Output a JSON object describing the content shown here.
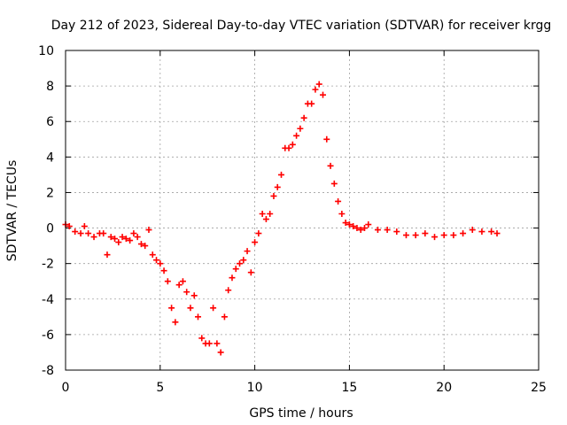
{
  "chart_data": {
    "type": "scatter",
    "title": "Day 212 of 2023, Sidereal Day-to-day VTEC variation (SDTVAR) for receiver krgg",
    "xlabel": "GPS time / hours",
    "ylabel": "SDTVAR / TECUs",
    "xlim": [
      0,
      25
    ],
    "ylim": [
      -8,
      10
    ],
    "xticks": [
      "0",
      "5",
      "10",
      "15",
      "20",
      "25"
    ],
    "yticks": [
      "-8",
      "-6",
      "-4",
      "-2",
      "0",
      "2",
      "4",
      "6",
      "8",
      "10"
    ],
    "grid": true,
    "marker": "+",
    "series": [
      {
        "name": "krgg",
        "color": "#ff0000",
        "x": [
          0.0,
          0.2,
          0.5,
          0.8,
          1.0,
          1.2,
          1.5,
          1.8,
          2.0,
          2.2,
          2.4,
          2.6,
          2.8,
          3.0,
          3.2,
          3.4,
          3.6,
          3.8,
          4.0,
          4.2,
          4.4,
          4.6,
          4.8,
          5.0,
          5.2,
          5.4,
          5.6,
          5.8,
          6.0,
          6.2,
          6.4,
          6.6,
          6.8,
          7.0,
          7.2,
          7.4,
          7.6,
          7.8,
          8.0,
          8.2,
          8.4,
          8.6,
          8.8,
          9.0,
          9.2,
          9.4,
          9.6,
          9.8,
          10.0,
          10.2,
          10.4,
          10.6,
          10.8,
          11.0,
          11.2,
          11.4,
          11.6,
          11.8,
          12.0,
          12.2,
          12.4,
          12.6,
          12.8,
          13.0,
          13.2,
          13.4,
          13.6,
          13.8,
          14.0,
          14.2,
          14.4,
          14.6,
          14.8,
          15.0,
          15.2,
          15.4,
          15.6,
          15.8,
          16.0,
          16.5,
          17.0,
          17.5,
          18.0,
          18.5,
          19.0,
          19.5,
          20.0,
          20.5,
          21.0,
          21.5,
          22.0,
          22.5,
          22.8
        ],
        "y": [
          0.2,
          0.1,
          -0.2,
          -0.3,
          0.1,
          -0.3,
          -0.5,
          -0.3,
          -0.3,
          -1.5,
          -0.5,
          -0.6,
          -0.8,
          -0.5,
          -0.6,
          -0.7,
          -0.3,
          -0.5,
          -0.9,
          -1.0,
          -0.1,
          -1.5,
          -1.8,
          -2.0,
          -2.4,
          -3.0,
          -4.5,
          -5.3,
          -3.2,
          -3.0,
          -3.6,
          -4.5,
          -3.8,
          -5.0,
          -6.2,
          -6.5,
          -6.5,
          -4.5,
          -6.5,
          -7.0,
          -5.0,
          -3.5,
          -2.8,
          -2.3,
          -2.0,
          -1.8,
          -1.3,
          -2.5,
          -0.8,
          -0.3,
          0.8,
          0.5,
          0.8,
          1.8,
          2.3,
          3.0,
          4.5,
          4.5,
          4.7,
          5.2,
          5.6,
          6.2,
          7.0,
          7.0,
          7.8,
          8.1,
          7.5,
          5.0,
          3.5,
          2.5,
          1.5,
          0.8,
          0.3,
          0.2,
          0.1,
          0.0,
          -0.1,
          0.0,
          0.2,
          -0.1,
          -0.1,
          -0.2,
          -0.4,
          -0.4,
          -0.3,
          -0.5,
          -0.4,
          -0.4,
          -0.3,
          -0.1,
          -0.2,
          -0.2,
          -0.3
        ]
      }
    ]
  }
}
